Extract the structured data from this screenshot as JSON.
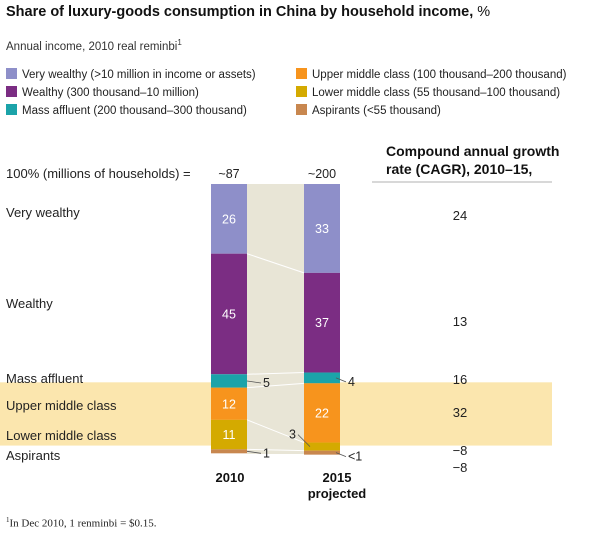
{
  "title": "Share of luxury-goods consumption in China by household income,",
  "title_unit": "%",
  "subtitle": "Annual income, 2010 real reminbi",
  "subtitle_sup": "1",
  "legend": [
    {
      "label": "Very wealthy (>10 million in income or assets)",
      "color": "#8e8fc9"
    },
    {
      "label": "Wealthy (300 thousand–10 million)",
      "color": "#7b2d83"
    },
    {
      "label": "Mass affluent (200 thousand–300 thousand)",
      "color": "#1ba3a9"
    },
    {
      "label": "Upper middle class (100 thousand–200 thousand)",
      "color": "#f7941d"
    },
    {
      "label": "Lower middle class (55 thousand–100 thousand)",
      "color": "#d4aa00"
    },
    {
      "label": "Aspirants (<55 thousand)",
      "color": "#c8874f"
    }
  ],
  "totals_label": "100% (millions of households) =",
  "cagr_title": "Compound annual growth rate (CAGR), 2010–15,",
  "cagr_unit": "%",
  "row_labels": [
    "Very wealthy",
    "Wealthy",
    "Mass affluent",
    "Upper middle class",
    "Lower middle class",
    "Aspirants"
  ],
  "footnote": "In Dec 2010, 1 renminbi = $0.15.",
  "footnote_sup": "1",
  "highlight_color": "#fbe6ae",
  "connector_color": "#e8e5d6",
  "chart_data": {
    "type": "bar",
    "stacked": true,
    "categories": [
      "2010",
      "2015 projected"
    ],
    "totals": [
      "~87",
      "~200"
    ],
    "series": [
      {
        "name": "Very wealthy",
        "values": [
          26,
          33
        ],
        "labels": [
          "26",
          "33"
        ],
        "cagr": "24",
        "color": "#8e8fc9"
      },
      {
        "name": "Wealthy",
        "values": [
          45,
          37
        ],
        "labels": [
          "45",
          "37"
        ],
        "cagr": "13",
        "color": "#7b2d83"
      },
      {
        "name": "Mass affluent",
        "values": [
          5,
          4
        ],
        "labels": [
          "5",
          "4"
        ],
        "cagr": "16",
        "color": "#1ba3a9"
      },
      {
        "name": "Upper middle class",
        "values": [
          12,
          22
        ],
        "labels": [
          "12",
          "22"
        ],
        "cagr": "32",
        "color": "#f7941d"
      },
      {
        "name": "Lower middle class",
        "values": [
          11,
          3
        ],
        "labels": [
          "11",
          "3"
        ],
        "cagr": "−8",
        "color": "#d4aa00"
      },
      {
        "name": "Aspirants",
        "values": [
          1,
          0.5
        ],
        "labels": [
          "1",
          "<1"
        ],
        "cagr": "−8",
        "color": "#c8874f"
      }
    ]
  }
}
